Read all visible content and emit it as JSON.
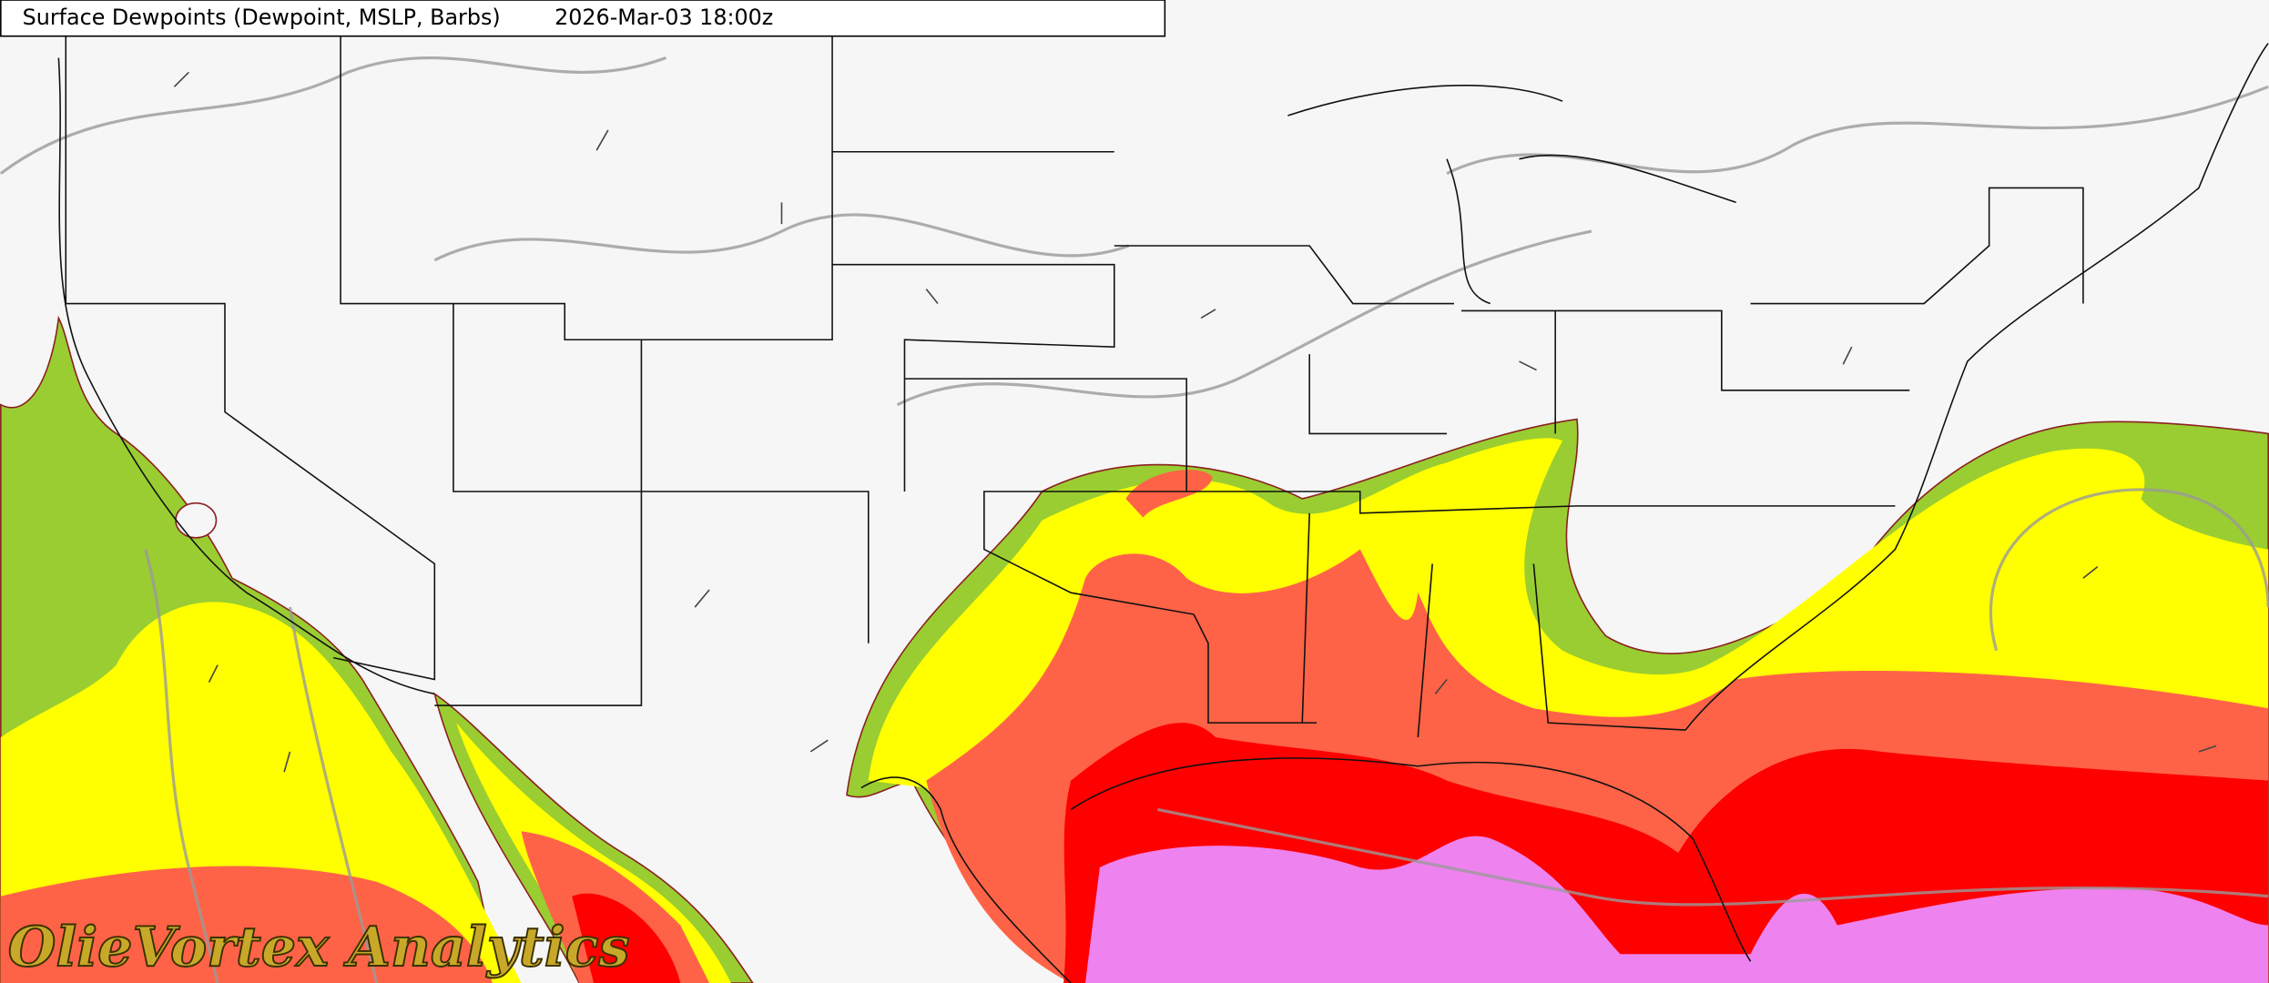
{
  "header": {
    "title": "Surface Dewpoints (Dewpoint, MSLP, Barbs)",
    "valid_time": "2026-Mar-03 18:00z"
  },
  "watermark": "OlieVortex Analytics"
}
